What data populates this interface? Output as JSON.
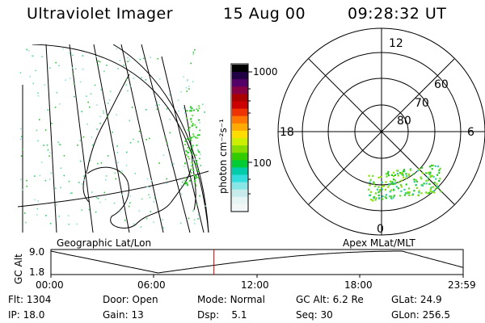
{
  "header": {
    "instrument": "Ultraviolet Imager",
    "date": "15 Aug 00",
    "time": "09:28:32 UT"
  },
  "colorbar": {
    "unit_label": "photon cm⁻²s⁻¹",
    "ticks": [
      "1000",
      "100"
    ],
    "colors": [
      "#000000",
      "#220044",
      "#550066",
      "#880044",
      "#aa0000",
      "#cc0000",
      "#ee3300",
      "#ff7700",
      "#ffaa00",
      "#ffdd00",
      "#ccee00",
      "#88dd00",
      "#33cc00",
      "#00cc33",
      "#00ccaa",
      "#33dddd",
      "#88e6e6",
      "#c8ecec",
      "#e6f4f4",
      "#f2f8f8"
    ]
  },
  "map_geographic": {
    "label": "Geographic Lat/Lon"
  },
  "map_polar": {
    "label": "Apex MLat/MLT",
    "mlt_labels": {
      "top": "12",
      "left": "18",
      "right": "6",
      "bottom": "0"
    },
    "ring_labels": [
      "60",
      "70",
      "80"
    ]
  },
  "altitude_plot": {
    "ylabel": "GC Alt",
    "yticks": [
      "9.0",
      "1.8"
    ],
    "xticks": [
      "00:00",
      "06:00",
      "12:00",
      "18:00",
      "23:59"
    ],
    "current_time_fraction": 0.3954,
    "marker_color": "#cc0000"
  },
  "status": {
    "flt_label": "Flt:",
    "flt_value": "1304",
    "ip_label": "IP:",
    "ip_value": "18.0",
    "door_label": "Door:",
    "door_value": "Open",
    "gain_label": "Gain:",
    "gain_value": "13",
    "mode_label": "Mode:",
    "mode_value": "Normal",
    "dsp_label": "Dsp:",
    "dsp_value": "5.1",
    "gcalt_label": "GC Alt:",
    "gcalt_value": "6.2 Re",
    "seq_label": "Seq:",
    "seq_value": "30",
    "glat_label": "GLat:",
    "glat_value": "24.9",
    "glon_label": "GLon:",
    "glon_value": "256.5"
  }
}
